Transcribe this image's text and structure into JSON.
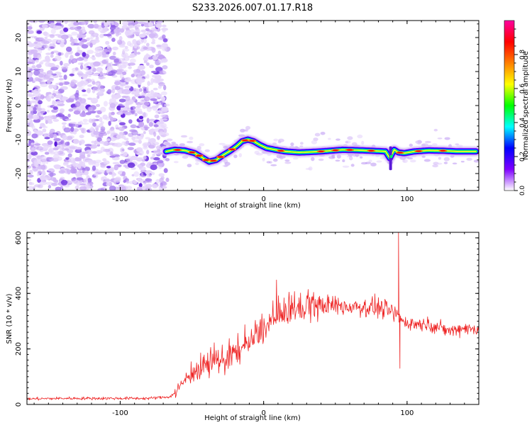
{
  "title": "S233.2026.007.01.17.R18",
  "chart_data": [
    {
      "id": "spectrogram",
      "type": "heatmap",
      "xlabel": "Height of straight line (km)",
      "ylabel": "Frequency (Hz)",
      "xlim": [
        -165,
        150
      ],
      "ylim": [
        -25,
        25
      ],
      "xticks": [
        -100,
        0,
        100
      ],
      "yticks": [
        -20,
        -10,
        0,
        10,
        20
      ],
      "noise_region_x": [
        -165,
        -67
      ],
      "signal_track": {
        "x": [
          -68,
          -62,
          -55,
          -48,
          -42,
          -38,
          -33,
          -28,
          -24,
          -19,
          -15,
          -11,
          -7,
          -3,
          2,
          8,
          15,
          25,
          40,
          55,
          70,
          85,
          88,
          91,
          94,
          98,
          105,
          115,
          125,
          135,
          148
        ],
        "freq": [
          -13.5,
          -13,
          -13.2,
          -14,
          -15.5,
          -16.5,
          -16,
          -14.5,
          -13.5,
          -12,
          -10.5,
          -10,
          -10.5,
          -11.5,
          -12.5,
          -13,
          -13.5,
          -13.8,
          -13.5,
          -13,
          -13.2,
          -13.5,
          -15.5,
          -13,
          -13.8,
          -14,
          -13.5,
          -13.2,
          -13.3,
          -13.5,
          -13.5
        ]
      },
      "colorbar": {
        "label": "Normalized spectral amplitude",
        "range": [
          0,
          1
        ],
        "ticks": [
          "0.0",
          "0.2",
          "0.4",
          "0.6",
          "0.8"
        ],
        "colors": [
          "#ffffff",
          "#7f00ff",
          "#0000ff",
          "#00ffff",
          "#00ff00",
          "#ffff00",
          "#ff7f00",
          "#ff0000",
          "#ff00a0"
        ]
      }
    },
    {
      "id": "snr",
      "type": "line",
      "xlabel": "Height of straight line (km)",
      "ylabel": "SNR (10 * v/v)",
      "xlim": [
        -165,
        150
      ],
      "ylim": [
        0,
        620
      ],
      "xticks": [
        -100,
        0,
        100
      ],
      "yticks": [
        0,
        200,
        400,
        600
      ],
      "color": "#ee2222",
      "series": [
        {
          "name": "SNR",
          "x": [
            -165,
            -140,
            -110,
            -80,
            -65,
            -60,
            -55,
            -50,
            -45,
            -40,
            -35,
            -30,
            -25,
            -20,
            -15,
            -10,
            -5,
            0,
            5,
            10,
            15,
            20,
            25,
            30,
            35,
            40,
            45,
            50,
            55,
            60,
            65,
            70,
            75,
            80,
            85,
            90,
            93,
            95,
            97,
            100,
            105,
            110,
            115,
            120,
            125,
            130,
            135,
            140,
            145,
            150
          ],
          "y": [
            20,
            22,
            22,
            22,
            28,
            50,
            90,
            110,
            120,
            135,
            150,
            160,
            170,
            185,
            200,
            220,
            245,
            270,
            295,
            320,
            330,
            340,
            345,
            350,
            350,
            355,
            358,
            358,
            352,
            352,
            355,
            350,
            350,
            350,
            340,
            330,
            320,
            310,
            300,
            295,
            290,
            290,
            290,
            280,
            272,
            265,
            270,
            278,
            270,
            275
          ],
          "spikes": [
            {
              "x": 94,
              "y": 620
            },
            {
              "x": 95,
              "y": 130
            }
          ]
        }
      ]
    }
  ]
}
